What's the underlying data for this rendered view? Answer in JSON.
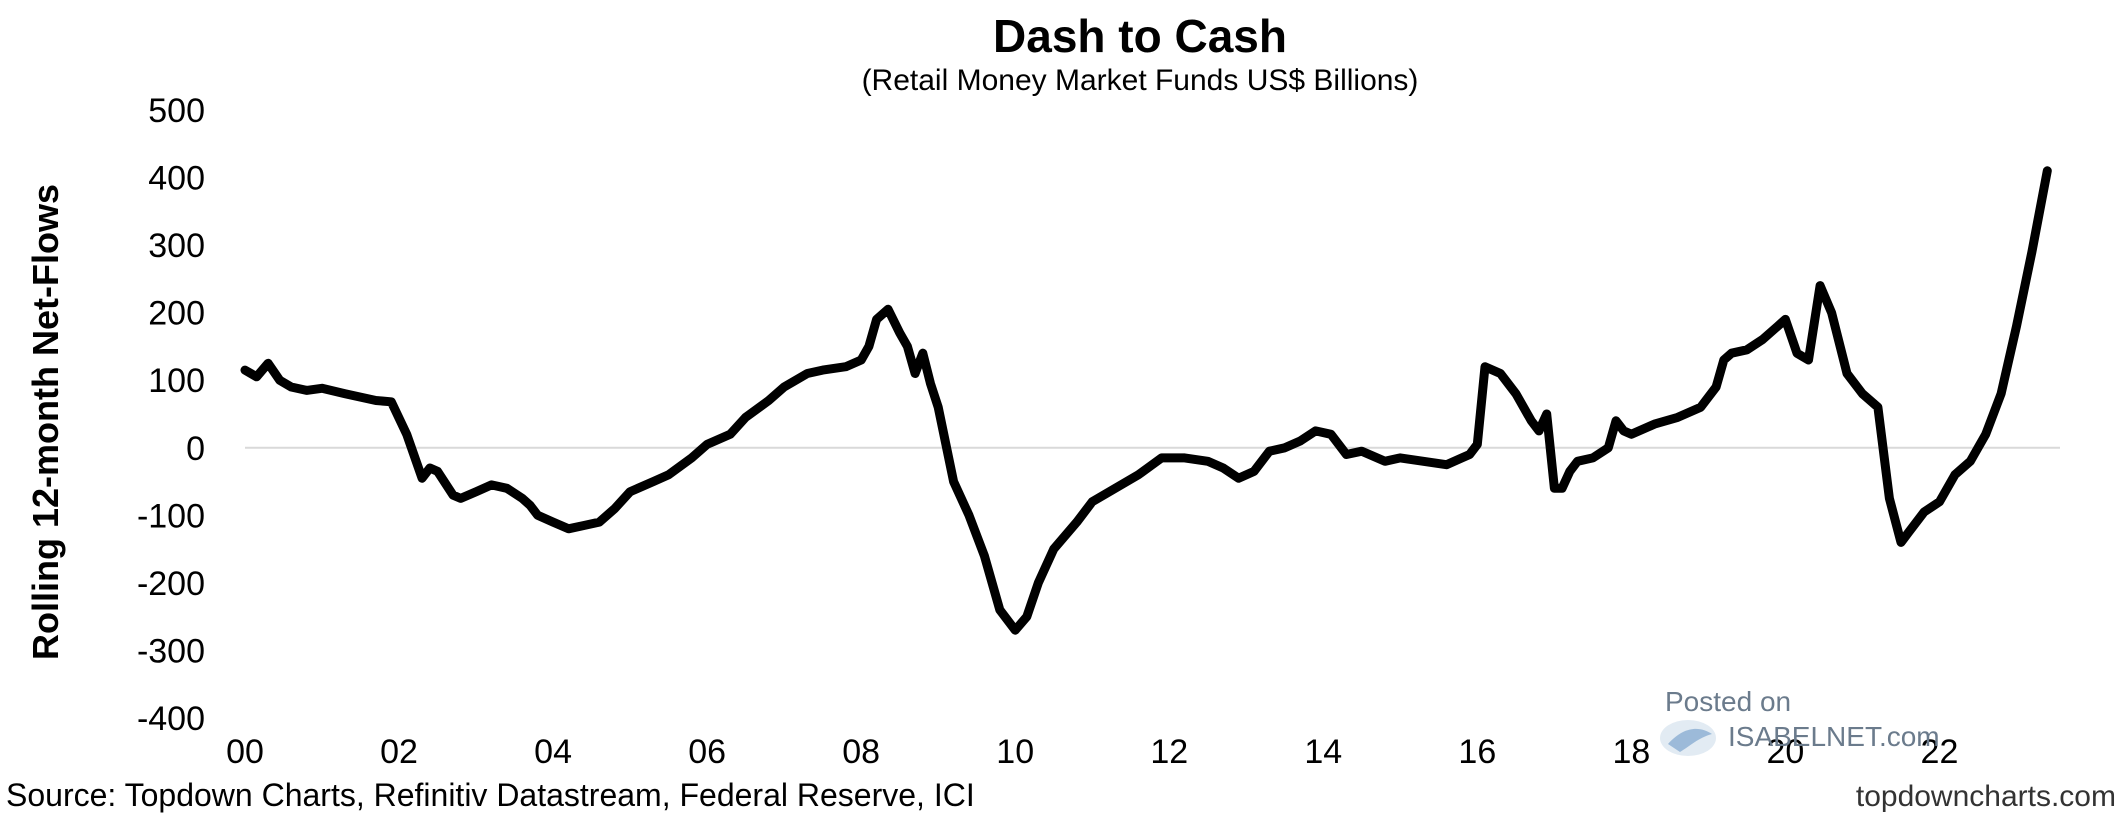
{
  "chart_data": {
    "type": "line",
    "title": "Dash to Cash",
    "subtitle": "(Retail Money Market Funds US$ Billions)",
    "ylabel": "Rolling 12-month Net-Flows",
    "xlabel": "",
    "xlim": [
      2000,
      2023.5
    ],
    "ylim": [
      -400,
      500
    ],
    "yticks": [
      500,
      400,
      300,
      200,
      100,
      0,
      -100,
      -200,
      -300,
      -400
    ],
    "xticks": [
      "00",
      "02",
      "04",
      "06",
      "08",
      "10",
      "12",
      "14",
      "16",
      "18",
      "20",
      "22"
    ],
    "xtick_years": [
      2000,
      2002,
      2004,
      2006,
      2008,
      2010,
      2012,
      2014,
      2016,
      2018,
      2020,
      2022
    ],
    "zero_line": true,
    "line_color": "#000000",
    "x": [
      2000.0,
      2000.15,
      2000.3,
      2000.45,
      2000.6,
      2000.8,
      2001.0,
      2001.3,
      2001.5,
      2001.7,
      2001.9,
      2002.1,
      2002.3,
      2002.4,
      2002.5,
      2002.7,
      2002.8,
      2003.0,
      2003.2,
      2003.4,
      2003.6,
      2003.7,
      2003.8,
      2004.0,
      2004.2,
      2004.4,
      2004.6,
      2004.8,
      2005.0,
      2005.3,
      2005.5,
      2005.8,
      2006.0,
      2006.3,
      2006.5,
      2006.8,
      2007.0,
      2007.3,
      2007.5,
      2007.8,
      2008.0,
      2008.1,
      2008.2,
      2008.35,
      2008.5,
      2008.6,
      2008.7,
      2008.8,
      2008.9,
      2009.0,
      2009.2,
      2009.4,
      2009.6,
      2009.8,
      2010.0,
      2010.15,
      2010.3,
      2010.5,
      2010.8,
      2011.0,
      2011.3,
      2011.6,
      2011.9,
      2012.2,
      2012.5,
      2012.7,
      2012.9,
      2013.1,
      2013.3,
      2013.5,
      2013.7,
      2013.9,
      2014.1,
      2014.3,
      2014.5,
      2014.8,
      2015.0,
      2015.3,
      2015.6,
      2015.8,
      2015.9,
      2016.0,
      2016.1,
      2016.3,
      2016.5,
      2016.7,
      2016.8,
      2016.9,
      2017.0,
      2017.1,
      2017.2,
      2017.3,
      2017.5,
      2017.7,
      2017.8,
      2017.9,
      2018.0,
      2018.3,
      2018.6,
      2018.9,
      2019.1,
      2019.2,
      2019.3,
      2019.5,
      2019.7,
      2019.9,
      2020.0,
      2020.15,
      2020.3,
      2020.45,
      2020.6,
      2020.8,
      2021.0,
      2021.2,
      2021.35,
      2021.5,
      2021.6,
      2021.8,
      2022.0,
      2022.2,
      2022.4,
      2022.6,
      2022.8,
      2023.0,
      2023.2,
      2023.4
    ],
    "y": [
      115,
      105,
      125,
      100,
      90,
      85,
      88,
      80,
      75,
      70,
      68,
      20,
      -45,
      -30,
      -35,
      -70,
      -75,
      -65,
      -55,
      -60,
      -75,
      -85,
      -100,
      -110,
      -120,
      -115,
      -110,
      -90,
      -65,
      -50,
      -40,
      -15,
      5,
      20,
      45,
      70,
      90,
      110,
      115,
      120,
      130,
      150,
      190,
      205,
      170,
      150,
      110,
      140,
      95,
      60,
      -50,
      -100,
      -160,
      -240,
      -270,
      -250,
      -200,
      -150,
      -110,
      -80,
      -60,
      -40,
      -15,
      -15,
      -20,
      -30,
      -45,
      -35,
      -5,
      0,
      10,
      25,
      20,
      -10,
      -5,
      -20,
      -15,
      -20,
      -25,
      -15,
      -10,
      5,
      120,
      110,
      80,
      40,
      25,
      50,
      -60,
      -60,
      -35,
      -20,
      -15,
      0,
      40,
      25,
      20,
      35,
      45,
      60,
      90,
      130,
      140,
      145,
      160,
      180,
      190,
      140,
      130,
      240,
      200,
      110,
      80,
      60,
      -75,
      -140,
      -125,
      -95,
      -80,
      -40,
      -20,
      20,
      80,
      180,
      290,
      410
    ]
  },
  "source": "Source: Topdown Charts, Refinitiv Datastream, Federal Reserve, ICI",
  "site": "topdowncharts.com",
  "watermark": {
    "posted_on": "Posted on",
    "brand": "ISABELNET.com"
  }
}
